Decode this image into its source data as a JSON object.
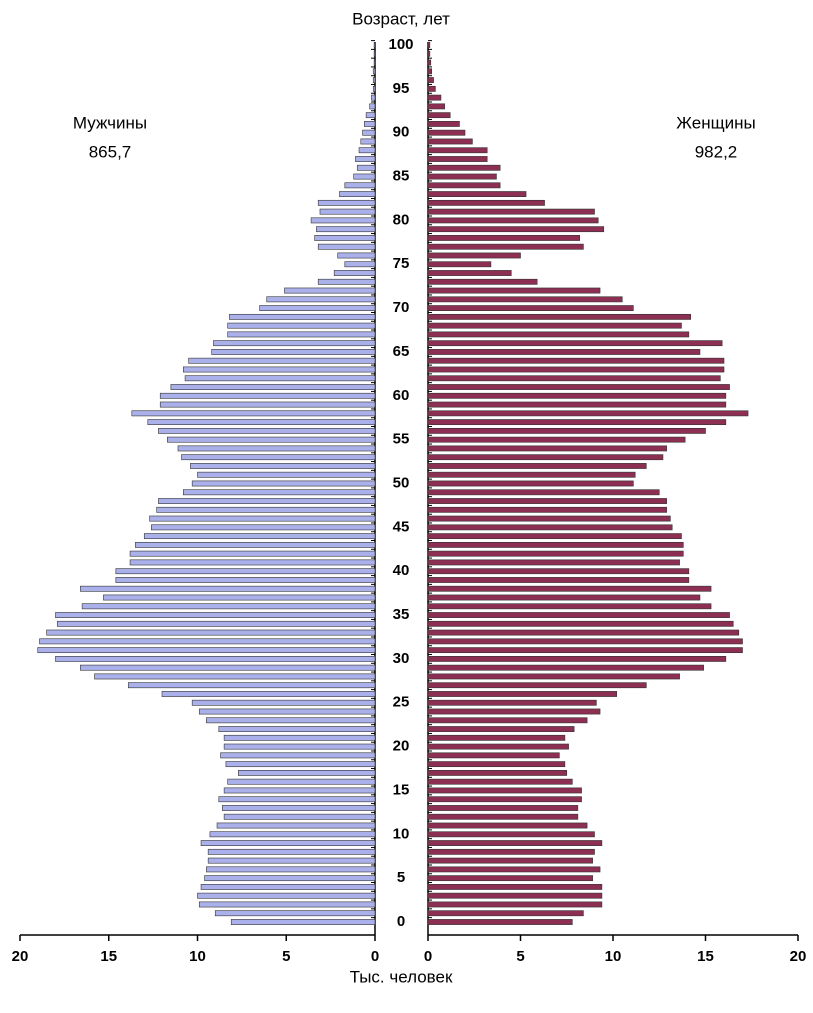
{
  "chart_data": {
    "type": "pyramid",
    "y_label": "Возраст, лет",
    "x_label": "Тыс. человек",
    "categories": [
      0,
      null,
      null,
      null,
      null,
      5,
      null,
      null,
      null,
      null,
      10,
      null,
      null,
      null,
      null,
      15,
      null,
      null,
      null,
      null,
      20,
      null,
      null,
      null,
      null,
      25,
      null,
      null,
      null,
      null,
      30,
      null,
      null,
      null,
      null,
      35,
      null,
      null,
      null,
      null,
      40,
      null,
      null,
      null,
      null,
      45,
      null,
      null,
      null,
      null,
      50,
      null,
      null,
      null,
      null,
      55,
      null,
      null,
      null,
      null,
      60,
      null,
      null,
      null,
      null,
      65,
      null,
      null,
      null,
      null,
      70,
      null,
      null,
      null,
      null,
      75,
      null,
      null,
      null,
      null,
      80,
      null,
      null,
      null,
      null,
      85,
      null,
      null,
      null,
      null,
      90,
      null,
      null,
      null,
      null,
      95,
      null,
      null,
      null,
      null,
      100
    ],
    "xlim": [
      0,
      20
    ],
    "xticks": [
      0,
      5,
      10,
      15,
      20
    ],
    "annotations": [
      {
        "text": "Мужчины",
        "total": "865,7"
      },
      {
        "text": "Женщины",
        "total": "982,2"
      }
    ],
    "series": [
      {
        "name": "Мужчины",
        "side": "left",
        "color": "#aab0ea",
        "values": [
          8.1,
          9.0,
          9.9,
          10.0,
          9.8,
          9.6,
          9.5,
          9.4,
          9.4,
          9.8,
          9.3,
          8.9,
          8.5,
          8.6,
          8.8,
          8.5,
          8.3,
          7.7,
          8.4,
          8.7,
          8.5,
          8.5,
          8.8,
          9.5,
          9.9,
          10.3,
          12.0,
          13.9,
          15.8,
          16.6,
          18.0,
          19.0,
          18.9,
          18.5,
          17.9,
          18.0,
          16.5,
          15.3,
          16.6,
          14.6,
          14.6,
          13.8,
          13.8,
          13.5,
          13.0,
          12.6,
          12.7,
          12.3,
          12.2,
          10.8,
          10.3,
          10.0,
          10.4,
          10.9,
          11.1,
          11.7,
          12.2,
          12.8,
          13.7,
          12.1,
          12.1,
          11.5,
          10.7,
          10.8,
          10.5,
          9.2,
          9.1,
          8.3,
          8.3,
          8.2,
          6.5,
          6.1,
          5.1,
          3.2,
          2.3,
          1.7,
          2.1,
          3.2,
          3.4,
          3.3,
          3.6,
          3.1,
          3.2,
          2.0,
          1.7,
          1.2,
          1.0,
          1.1,
          0.9,
          0.8,
          0.7,
          0.6,
          0.5,
          0.3,
          0.2,
          0.1,
          0.1,
          0.1,
          0.05,
          0.05,
          0.05
        ]
      },
      {
        "name": "Женщины",
        "side": "right",
        "color": "#8c2f52",
        "values": [
          7.8,
          8.4,
          9.4,
          9.4,
          9.4,
          8.9,
          9.3,
          8.9,
          9.0,
          9.4,
          9.0,
          8.6,
          8.1,
          8.1,
          8.3,
          8.3,
          7.8,
          7.5,
          7.4,
          7.1,
          7.6,
          7.4,
          7.9,
          8.6,
          9.3,
          9.1,
          10.2,
          11.8,
          13.6,
          14.9,
          16.1,
          17.0,
          17.0,
          16.8,
          16.5,
          16.3,
          15.3,
          14.7,
          15.3,
          14.1,
          14.1,
          13.6,
          13.8,
          13.8,
          13.7,
          13.2,
          13.1,
          12.9,
          12.9,
          12.5,
          11.1,
          11.2,
          11.8,
          12.7,
          12.9,
          13.9,
          15.0,
          16.1,
          17.3,
          16.1,
          16.1,
          16.3,
          15.8,
          16.0,
          16.0,
          14.7,
          15.9,
          14.1,
          13.7,
          14.2,
          11.1,
          10.5,
          9.3,
          5.9,
          4.5,
          3.4,
          5.0,
          8.4,
          8.2,
          9.5,
          9.2,
          9.0,
          6.3,
          5.3,
          3.9,
          3.7,
          3.9,
          3.2,
          3.2,
          2.4,
          2.0,
          1.7,
          1.2,
          0.9,
          0.7,
          0.4,
          0.3,
          0.2,
          0.15,
          0.1,
          0.1
        ]
      }
    ]
  }
}
